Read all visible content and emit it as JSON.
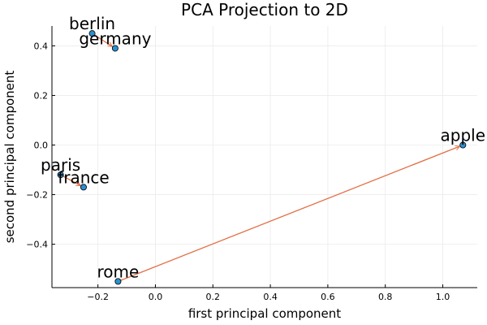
{
  "chart_data": {
    "type": "scatter",
    "title": "PCA Projection to 2D",
    "xlabel": "first principal component",
    "ylabel": "second principal component",
    "xlim": [
      -0.36,
      1.12
    ],
    "ylim": [
      -0.575,
      0.48
    ],
    "xticks": [
      -0.2,
      0.0,
      0.2,
      0.4,
      0.6,
      0.8,
      1.0
    ],
    "xtick_labels": [
      "−0.2",
      "0.0",
      "0.2",
      "0.4",
      "0.6",
      "0.8",
      "1.0"
    ],
    "yticks": [
      -0.4,
      -0.2,
      0.0,
      0.2,
      0.4
    ],
    "ytick_labels": [
      "−0.4",
      "−0.2",
      "0.0",
      "0.2",
      "0.4"
    ],
    "grid": true,
    "legend": false,
    "points": [
      {
        "label": "berlin",
        "x": -0.22,
        "y": 0.45
      },
      {
        "label": "germany",
        "x": -0.14,
        "y": 0.39
      },
      {
        "label": "apple",
        "x": 1.07,
        "y": 0.0
      },
      {
        "label": "paris",
        "x": -0.33,
        "y": -0.12
      },
      {
        "label": "france",
        "x": -0.25,
        "y": -0.17
      },
      {
        "label": "rome",
        "x": -0.13,
        "y": -0.55
      }
    ],
    "arrows": [
      {
        "from": "berlin",
        "to": "germany"
      },
      {
        "from": "paris",
        "to": "france"
      },
      {
        "from": "rome",
        "to": "apple"
      }
    ],
    "colors": {
      "point": "#2b8fd1",
      "point_edge": "#000000",
      "arrow": "#e26f46",
      "grid": "#ebebeb",
      "axis": "#000000"
    }
  }
}
